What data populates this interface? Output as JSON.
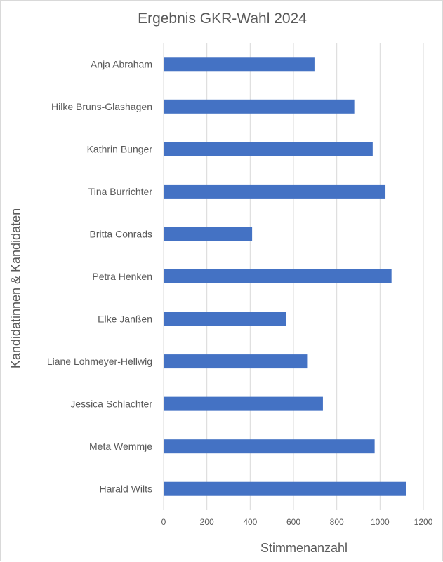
{
  "chart_data": {
    "type": "bar",
    "orientation": "horizontal",
    "title": "Ergebnis GKR-Wahl 2024",
    "xlabel": "Stimmenanzahl",
    "ylabel": "Kandidatinnen & Kandidaten",
    "categories": [
      "Anja Abraham",
      "Hilke Bruns-Glashagen",
      "Kathrin Bunger",
      "Tina Burrichter",
      "Britta Conrads",
      "Petra Henken",
      "Elke Janßen",
      "Liane Lohmeyer-Hellwig",
      "Jessica Schlachter",
      "Meta Wemmje",
      "Harald Wilts"
    ],
    "values": [
      697,
      881,
      966,
      1025,
      409,
      1053,
      565,
      663,
      736,
      975,
      1119
    ],
    "xlim": [
      0,
      1200
    ],
    "xticks": [
      "0",
      "200",
      "400",
      "600",
      "800",
      "1000",
      "1200"
    ],
    "grid": true,
    "bar_color": "#4472C4"
  }
}
